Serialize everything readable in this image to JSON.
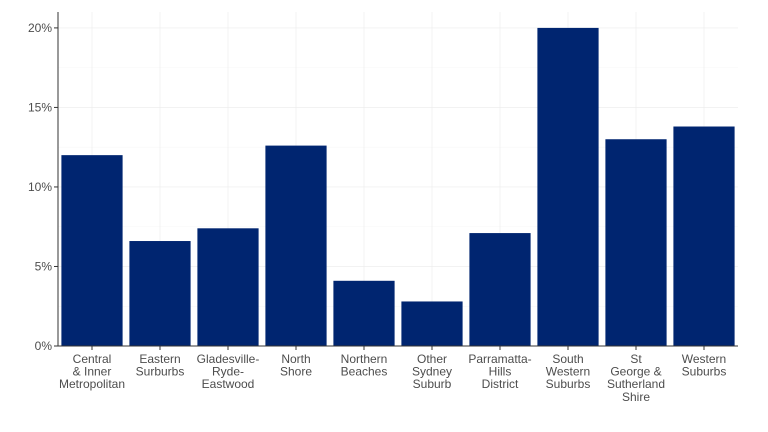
{
  "chart_data": {
    "type": "bar",
    "title": "",
    "xlabel": "",
    "ylabel": "",
    "categories": [
      [
        "Central",
        "& Inner",
        "Metropolitan"
      ],
      [
        "Eastern",
        "Surburbs"
      ],
      [
        "Gladesville-",
        "Ryde-",
        "Eastwood"
      ],
      [
        "North",
        "Shore"
      ],
      [
        "Northern",
        "Beaches"
      ],
      [
        "Other",
        "Sydney",
        "Suburb"
      ],
      [
        "Parramatta-",
        "Hills",
        "District"
      ],
      [
        "South",
        "Western",
        "Suburbs"
      ],
      [
        "St",
        "George &",
        "Sutherland",
        "Shire"
      ],
      [
        "Western",
        "Suburbs"
      ]
    ],
    "values": [
      12.0,
      6.6,
      7.4,
      12.6,
      4.1,
      2.8,
      7.1,
      20.0,
      13.0,
      13.8
    ],
    "ylim": [
      0,
      21
    ],
    "yticks": [
      0,
      5,
      10,
      15,
      20
    ],
    "ytick_labels": [
      "0%",
      "5%",
      "10%",
      "15%",
      "20%"
    ],
    "bar_color": "#002570",
    "grid": true,
    "legend": "none"
  }
}
